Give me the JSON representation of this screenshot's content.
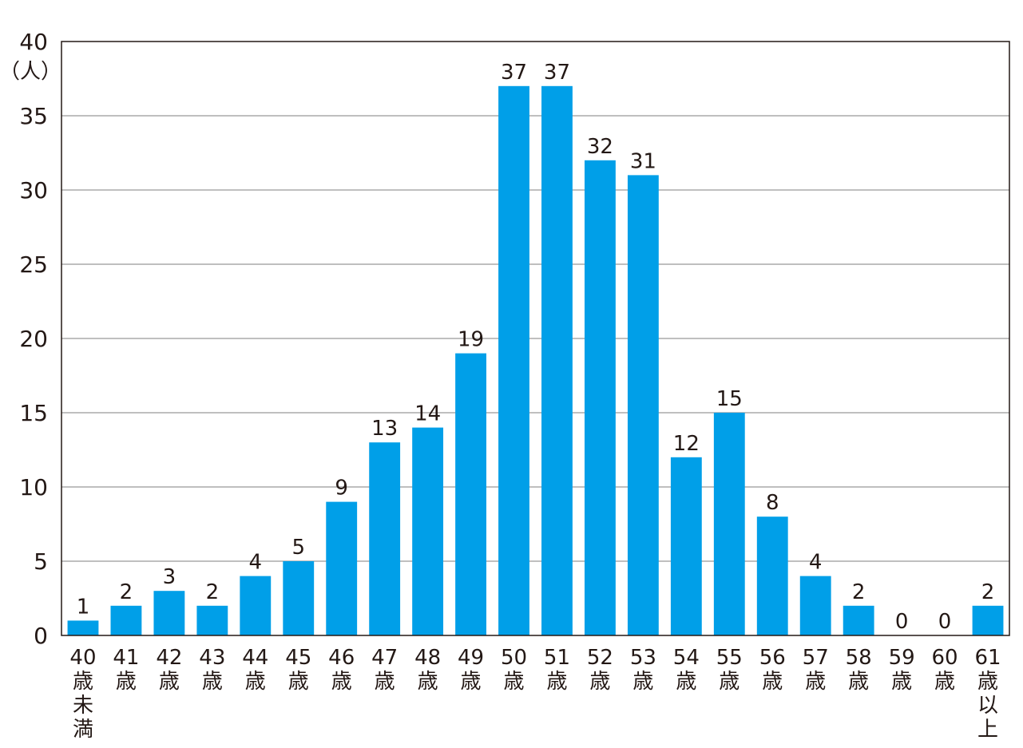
{
  "chart_data": {
    "type": "bar",
    "title": "",
    "xlabel": "",
    "ylabel": "（人）",
    "ylim": [
      0,
      40
    ],
    "yticks": [
      0,
      5,
      10,
      15,
      20,
      25,
      30,
      35,
      40
    ],
    "grid": true,
    "bar_color": "#009fe8",
    "grid_color": "#999999",
    "axis_color": "#231815",
    "categories": [
      "40歳未満",
      "41歳",
      "42歳",
      "43歳",
      "44歳",
      "45歳",
      "46歳",
      "47歳",
      "48歳",
      "49歳",
      "50歳",
      "51歳",
      "52歳",
      "53歳",
      "54歳",
      "55歳",
      "56歳",
      "57歳",
      "58歳",
      "59歳",
      "60歳",
      "61歳以上"
    ],
    "values": [
      1,
      2,
      3,
      2,
      4,
      5,
      9,
      13,
      14,
      19,
      37,
      37,
      32,
      31,
      12,
      15,
      8,
      4,
      2,
      0,
      0,
      2
    ]
  }
}
